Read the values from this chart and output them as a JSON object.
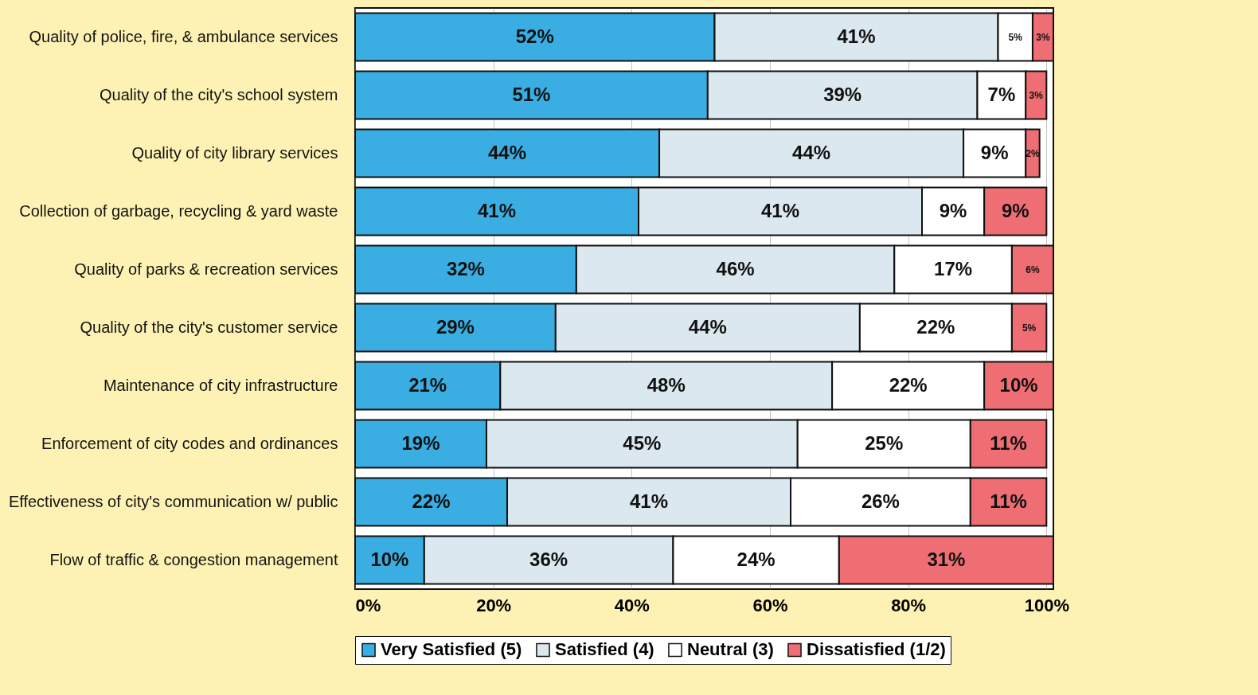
{
  "chart_data": {
    "type": "bar",
    "orientation": "horizontal",
    "stacked": true,
    "categories": [
      "Quality of police, fire, & ambulance services",
      "Quality of the city's school system",
      "Quality of city library services",
      "Collection of garbage, recycling & yard waste",
      "Quality of parks & recreation services",
      "Quality of the city's customer service",
      "Maintenance of city infrastructure",
      "Enforcement of city codes and ordinances",
      "Effectiveness of city's communication w/ public",
      "Flow of traffic & congestion management"
    ],
    "series": [
      {
        "name": "Very Satisfied (5)",
        "color": "#3aaee2",
        "values": [
          52,
          51,
          44,
          41,
          32,
          29,
          21,
          19,
          22,
          10
        ],
        "value_labels": [
          "52%",
          "51%",
          "44%",
          "41%",
          "32%",
          "29%",
          "21%",
          "19%",
          "22%",
          "10%"
        ]
      },
      {
        "name": "Satisfied (4)",
        "color": "#dce8ef",
        "values": [
          41,
          39,
          44,
          41,
          46,
          44,
          48,
          45,
          41,
          36
        ],
        "value_labels": [
          "41%",
          "39%",
          "44%",
          "41%",
          "46%",
          "44%",
          "48%",
          "45%",
          "41%",
          "36%"
        ]
      },
      {
        "name": "Neutral (3)",
        "color": "#ffffff",
        "values": [
          5,
          7,
          9,
          9,
          17,
          22,
          22,
          25,
          26,
          24
        ],
        "value_labels": [
          "5%",
          "7%",
          "9%",
          "9%",
          "17%",
          "22%",
          "22%",
          "25%",
          "26%",
          "24%"
        ]
      },
      {
        "name": "Dissatisfied (1/2)",
        "color": "#ef6e73",
        "values": [
          3,
          3,
          2,
          9,
          6,
          5,
          10,
          11,
          11,
          31
        ],
        "value_labels": [
          "3%",
          "3%",
          "2%",
          "9%",
          "6%",
          "5%",
          "10%",
          "11%",
          "11%",
          "31%"
        ]
      }
    ],
    "xlim": [
      0,
      101
    ],
    "xticks": [
      {
        "value": 0,
        "label": "0%"
      },
      {
        "value": 20,
        "label": "20%"
      },
      {
        "value": 40,
        "label": "40%"
      },
      {
        "value": 60,
        "label": "60%"
      },
      {
        "value": 80,
        "label": "80%"
      },
      {
        "value": 100,
        "label": "100%"
      }
    ],
    "grid": "x",
    "legend": "bottom"
  }
}
